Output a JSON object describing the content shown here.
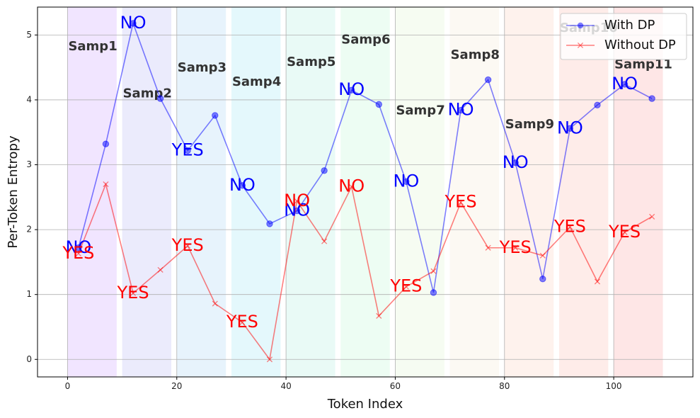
{
  "chart_data": {
    "type": "line",
    "title": "",
    "xlabel": "Token Index",
    "ylabel": "Per-Token Entropy",
    "xlim": [
      -5.5,
      114.5
    ],
    "ylim": [
      -0.27,
      5.43
    ],
    "xticks": [
      0,
      20,
      40,
      60,
      80,
      100
    ],
    "yticks": [
      0,
      1,
      2,
      3,
      4,
      5
    ],
    "grid": true,
    "legend_position": "top-right",
    "sample_regions": [
      {
        "label": "Samp1",
        "x0": 0,
        "x1": 9,
        "label_y": 4.82,
        "color": "#d8b4fe"
      },
      {
        "label": "Samp2",
        "x0": 10,
        "x1": 19,
        "label_y": 4.09,
        "color": "#c7c7f7"
      },
      {
        "label": "Samp3",
        "x0": 20,
        "x1": 29,
        "label_y": 4.49,
        "color": "#b9dcf7"
      },
      {
        "label": "Samp4",
        "x0": 30,
        "x1": 39,
        "label_y": 4.27,
        "color": "#b3ecf5"
      },
      {
        "label": "Samp5",
        "x0": 40,
        "x1": 49,
        "label_y": 4.58,
        "color": "#c0f2e6"
      },
      {
        "label": "Samp6",
        "x0": 50,
        "x1": 59,
        "label_y": 4.92,
        "color": "#ccf9dc"
      },
      {
        "label": "Samp7",
        "x0": 60,
        "x1": 69,
        "label_y": 3.83,
        "color": "#e4f7d9"
      },
      {
        "label": "Samp8",
        "x0": 70,
        "x1": 79,
        "label_y": 4.69,
        "color": "#f7eedd"
      },
      {
        "label": "Samp9",
        "x0": 80,
        "x1": 89,
        "label_y": 3.62,
        "color": "#fbd9cc"
      },
      {
        "label": "Samp10",
        "x0": 90,
        "x1": 99,
        "label_y": 5.1,
        "color": "#fbc8c0"
      },
      {
        "label": "Samp11",
        "x0": 100,
        "x1": 109,
        "label_y": 4.54,
        "color": "#fcb8b8"
      }
    ],
    "series": [
      {
        "name": "With DP",
        "color": "#0000ff",
        "marker": "circle",
        "x": [
          2,
          7,
          12,
          17,
          22,
          27,
          32,
          37,
          42,
          47,
          52,
          57,
          62,
          67,
          72,
          77,
          82,
          87,
          92,
          97,
          102,
          107
        ],
        "y": [
          1.72,
          3.32,
          5.18,
          4.02,
          3.22,
          3.76,
          2.68,
          2.09,
          2.29,
          2.91,
          4.15,
          3.93,
          2.74,
          1.03,
          3.84,
          4.31,
          3.03,
          1.24,
          3.56,
          3.92,
          4.24,
          4.02
        ]
      },
      {
        "name": "Without DP",
        "color": "#ff0000",
        "marker": "x",
        "x": [
          2,
          7,
          12,
          17,
          22,
          27,
          32,
          37,
          42,
          47,
          52,
          57,
          62,
          67,
          72,
          77,
          82,
          87,
          92,
          97,
          102,
          107
        ],
        "y": [
          1.63,
          2.7,
          1.02,
          1.38,
          1.75,
          0.86,
          0.57,
          0.0,
          2.44,
          1.82,
          2.66,
          0.67,
          1.12,
          1.36,
          2.42,
          1.72,
          1.72,
          1.6,
          2.04,
          1.2,
          1.96,
          2.2
        ]
      }
    ],
    "annotations_with_dp": [
      {
        "text": "NO",
        "x": 2,
        "y": 1.72
      },
      {
        "text": "NO",
        "x": 12,
        "y": 5.18
      },
      {
        "text": "YES",
        "x": 22,
        "y": 3.22
      },
      {
        "text": "NO",
        "x": 32,
        "y": 2.68
      },
      {
        "text": "NO",
        "x": 42,
        "y": 2.29
      },
      {
        "text": "NO",
        "x": 52,
        "y": 4.15
      },
      {
        "text": "NO",
        "x": 62,
        "y": 2.74
      },
      {
        "text": "NO",
        "x": 72,
        "y": 3.84
      },
      {
        "text": "NO",
        "x": 82,
        "y": 3.03
      },
      {
        "text": "NO",
        "x": 92,
        "y": 3.56
      },
      {
        "text": "NO",
        "x": 102,
        "y": 4.24
      }
    ],
    "annotations_without_dp": [
      {
        "text": "YES",
        "x": 2,
        "y": 1.63
      },
      {
        "text": "YES",
        "x": 12,
        "y": 1.02
      },
      {
        "text": "YES",
        "x": 22,
        "y": 1.75
      },
      {
        "text": "YES",
        "x": 32,
        "y": 0.57
      },
      {
        "text": "NO",
        "x": 42,
        "y": 2.44
      },
      {
        "text": "NO",
        "x": 52,
        "y": 2.66
      },
      {
        "text": "YES",
        "x": 62,
        "y": 1.12
      },
      {
        "text": "YES",
        "x": 72,
        "y": 2.42
      },
      {
        "text": "YES",
        "x": 82,
        "y": 1.72
      },
      {
        "text": "YES",
        "x": 92,
        "y": 2.04
      },
      {
        "text": "YES",
        "x": 102,
        "y": 1.96
      }
    ]
  }
}
